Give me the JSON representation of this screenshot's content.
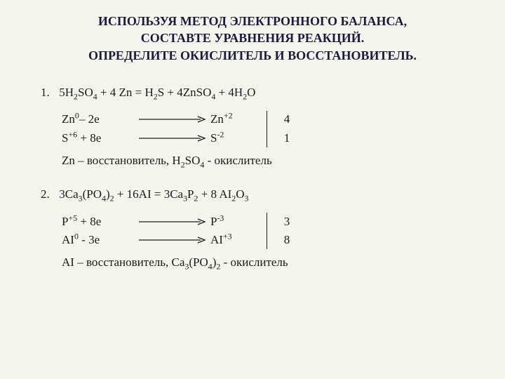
{
  "title_line1": "ИСПОЛЬЗУЯ МЕТОД ЭЛЕКТРОННОГО БАЛАНСА,",
  "title_line2": "СОСТАВТЕ УРАВНЕНИЯ РЕАКЦИЙ.",
  "title_line3": "ОПРЕДЕЛИТЕ ОКИСЛИТЕЛЬ И ВОССТАНОВИТЕЛЬ.",
  "tasks": [
    {
      "num": "1.",
      "equation_html": "5H<sub>2</sub>SO<sub>4</sub> + 4 Zn  =  H<sub>2</sub>S  +  4ZnSO<sub>4</sub>  +  4H<sub>2</sub>O",
      "half": [
        {
          "left_html": "Zn<sup>0</sup>– 2e",
          "right_html": "Zn<sup>+2</sup>",
          "factor": "4"
        },
        {
          "left_html": "S<sup>+6</sup>  + 8e",
          "right_html": "S<sup>-2</sup>",
          "factor": "1"
        }
      ],
      "conclusion_html": "Zn – восстановитель,   H<sub>2</sub>SO<sub>4</sub>  - окислитель"
    },
    {
      "num": "2.",
      "equation_html": "3Ca<sub>3</sub>(PO<sub>4</sub>)<sub>2</sub>  +  16AI  =  3Ca<sub>3</sub>P<sub>2</sub>  +  8 AI<sub>2</sub>O<sub>3</sub>",
      "half": [
        {
          "left_html": "P<sup>+5</sup>  + 8e",
          "right_html": "P<sup>-3</sup>",
          "factor": "3"
        },
        {
          "left_html": "AI<sup>0</sup> -  3e",
          "right_html": "AI<sup>+3</sup>",
          "factor": "8"
        }
      ],
      "conclusion_html": "AI – восстановитель,   Ca<sub>3</sub>(PO<sub>4</sub>)<sub>2</sub>  - окислитель"
    }
  ],
  "arrow": {
    "width": 96,
    "height": 10,
    "stroke": "#1a1a1a"
  }
}
